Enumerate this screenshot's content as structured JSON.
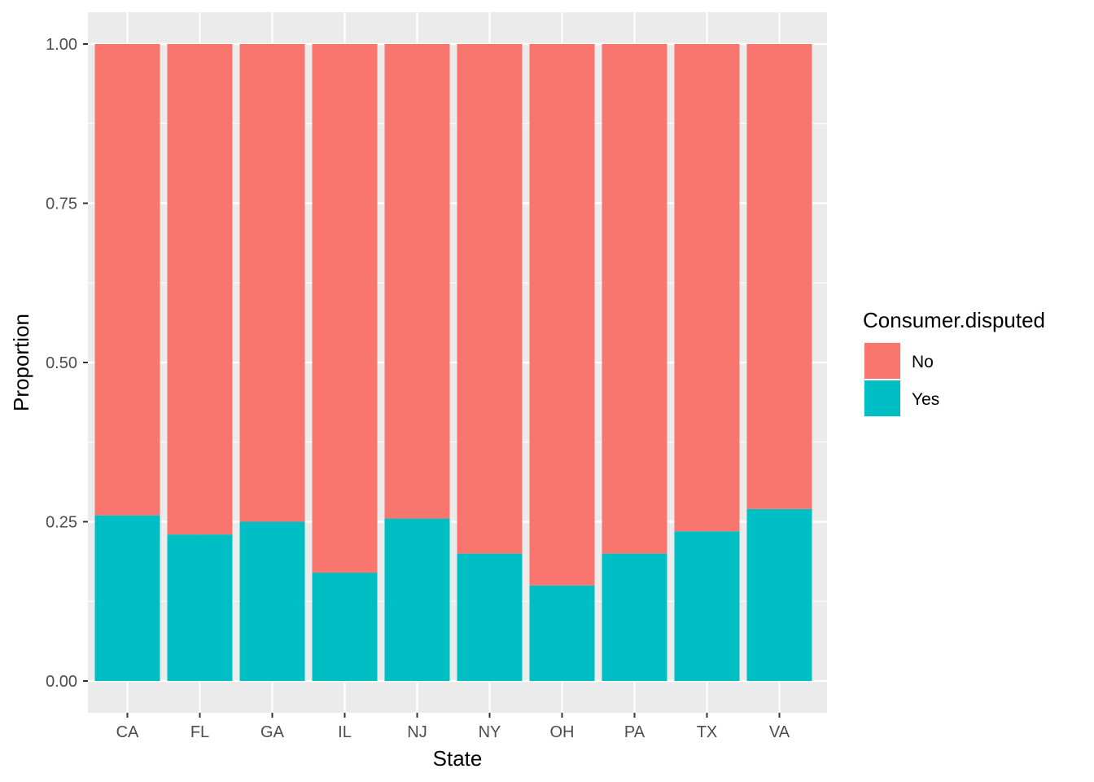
{
  "chart_data": {
    "type": "bar",
    "stacked": true,
    "categories": [
      "CA",
      "FL",
      "GA",
      "IL",
      "NJ",
      "NY",
      "OH",
      "PA",
      "TX",
      "VA"
    ],
    "series": [
      {
        "name": "No",
        "color": "#F8766D",
        "values": [
          0.74,
          0.77,
          0.75,
          0.83,
          0.745,
          0.8,
          0.85,
          0.8,
          0.765,
          0.73
        ]
      },
      {
        "name": "Yes",
        "color": "#00BFC4",
        "values": [
          0.26,
          0.23,
          0.25,
          0.17,
          0.255,
          0.2,
          0.15,
          0.2,
          0.235,
          0.27
        ]
      }
    ],
    "xlabel": "State",
    "ylabel": "Proportion",
    "ylim": [
      0,
      1
    ],
    "yticks": [
      "0.00",
      "0.25",
      "0.50",
      "0.75",
      "1.00"
    ],
    "legend": {
      "title": "Consumer.disputed",
      "position": "right"
    },
    "grid": true,
    "panel_background": "#EBEBEB"
  }
}
